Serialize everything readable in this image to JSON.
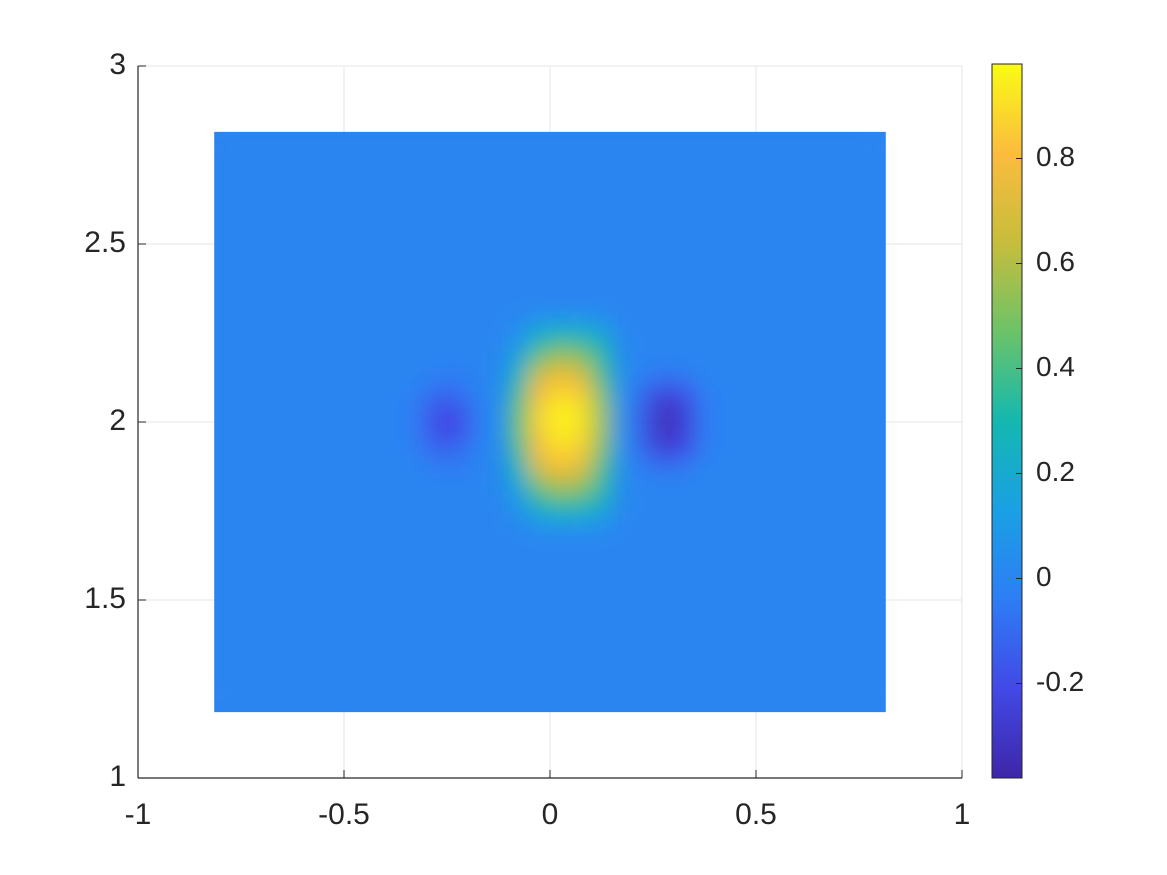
{
  "chart_data": {
    "type": "heatmap",
    "x": [
      -0.815,
      -0.35,
      -0.3,
      -0.25,
      -0.2,
      -0.15,
      -0.1,
      -0.05,
      0,
      0.05,
      0.1,
      0.15,
      0.2,
      0.25,
      0.3,
      0.35,
      0.4,
      0.815
    ],
    "y": [
      1.185,
      1.7,
      1.75,
      1.8,
      1.85,
      1.9,
      1.95,
      2.0,
      2.05,
      2.1,
      2.15,
      2.2,
      2.25,
      2.3,
      2.815
    ],
    "z": [
      [
        0,
        0,
        0,
        0,
        0,
        0,
        0,
        0,
        0,
        0,
        0,
        0,
        0,
        0,
        0,
        0,
        0
      ],
      [
        0,
        0,
        0,
        0,
        0,
        0,
        0.03,
        0.12,
        0.15,
        0.14,
        0.1,
        0,
        0,
        0,
        0,
        0,
        0
      ],
      [
        0,
        0,
        0,
        0,
        0,
        0,
        0.1,
        0.3,
        0.38,
        0.35,
        0.25,
        0.02,
        0,
        0,
        0,
        0,
        0
      ],
      [
        0,
        0,
        0,
        0,
        0,
        0.01,
        0.2,
        0.5,
        0.6,
        0.55,
        0.35,
        0.03,
        0,
        0,
        0,
        0,
        0
      ],
      [
        0,
        0,
        -0.03,
        -0.05,
        0,
        0.02,
        0.3,
        0.7,
        0.8,
        0.72,
        0.4,
        0.05,
        -0.04,
        -0.08,
        -0.06,
        0,
        0
      ],
      [
        0,
        -0.03,
        -0.12,
        -0.1,
        -0.02,
        0.03,
        0.4,
        0.8,
        0.9,
        0.85,
        0.5,
        0.05,
        -0.12,
        -0.25,
        -0.2,
        -0.04,
        0
      ],
      [
        0,
        -0.05,
        -0.2,
        -0.2,
        -0.05,
        0.05,
        0.45,
        0.85,
        0.95,
        0.9,
        0.55,
        0.05,
        -0.15,
        -0.33,
        -0.25,
        -0.05,
        0
      ],
      [
        0,
        -0.05,
        -0.2,
        -0.2,
        -0.05,
        0.05,
        0.45,
        0.87,
        0.97,
        0.92,
        0.55,
        0.05,
        -0.15,
        -0.33,
        -0.25,
        -0.05,
        0
      ],
      [
        0,
        -0.03,
        -0.12,
        -0.1,
        -0.02,
        0.03,
        0.4,
        0.8,
        0.9,
        0.85,
        0.5,
        0.05,
        -0.12,
        -0.25,
        -0.2,
        -0.04,
        0
      ],
      [
        0,
        0,
        -0.03,
        -0.05,
        0,
        0.02,
        0.3,
        0.7,
        0.8,
        0.72,
        0.4,
        0.05,
        -0.04,
        -0.08,
        -0.06,
        0,
        0
      ],
      [
        0,
        0,
        0,
        0,
        0,
        0.01,
        0.2,
        0.5,
        0.6,
        0.55,
        0.35,
        0.03,
        0,
        0,
        0,
        0,
        0
      ],
      [
        0,
        0,
        0,
        0,
        0,
        0,
        0.1,
        0.3,
        0.38,
        0.35,
        0.25,
        0.02,
        0,
        0,
        0,
        0,
        0
      ],
      [
        0,
        0,
        0,
        0,
        0,
        0,
        0.03,
        0.12,
        0.15,
        0.14,
        0.1,
        0,
        0,
        0,
        0,
        0,
        0
      ],
      [
        0,
        0,
        0,
        0,
        0,
        0,
        0,
        0,
        0,
        0,
        0,
        0,
        0,
        0,
        0,
        0,
        0
      ]
    ],
    "xlim": [
      -1,
      1
    ],
    "ylim": [
      1,
      3
    ],
    "xticks": [
      -1,
      -0.5,
      0,
      0.5,
      1
    ],
    "yticks": [
      1,
      1.5,
      2,
      2.5,
      3
    ],
    "grid": true,
    "clim": [
      -0.38,
      0.98
    ],
    "cticks": [
      -0.2,
      0,
      0.2,
      0.4,
      0.6,
      0.8
    ],
    "colormap": [
      "#3e26a8",
      "#4249e6",
      "#2e7df5",
      "#1aa0e4",
      "#14b8b0",
      "#6cc368",
      "#c7bd3c",
      "#fbbc3e",
      "#f9fb15"
    ]
  }
}
